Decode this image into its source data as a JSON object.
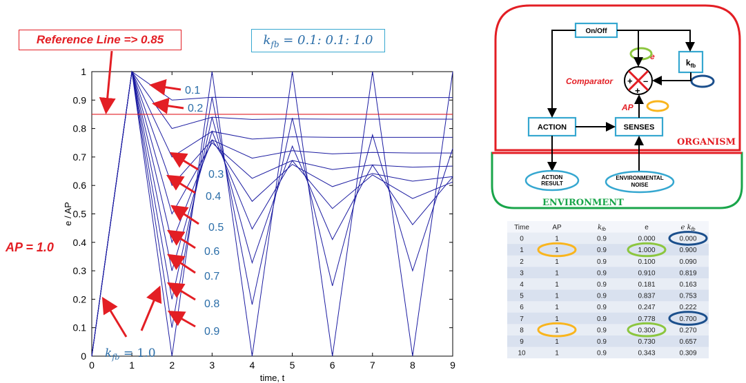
{
  "annotations": {
    "reference": "Reference Line => 0.85",
    "kfb_range": "k_fb = 0.1: 0.1: 1.0",
    "ap": "AP = 1.0",
    "kfb_bottom": "k_fb = 1.0"
  },
  "chart_data": {
    "type": "line",
    "xlabel": "time, t",
    "ylabel": "e / AP",
    "xlim": [
      0,
      9
    ],
    "ylim": [
      0,
      1
    ],
    "xticks": [
      0,
      1,
      2,
      3,
      4,
      5,
      6,
      7,
      8,
      9
    ],
    "yticks": [
      0,
      0.1,
      0.2,
      0.3,
      0.4,
      0.5,
      0.6,
      0.7,
      0.8,
      0.9,
      1
    ],
    "reference_line": 0.85,
    "x": [
      0,
      1,
      2,
      3,
      4,
      5,
      6,
      7,
      8,
      9
    ],
    "series": [
      {
        "name": "0.1",
        "values": [
          0,
          1,
          0.9,
          0.91,
          0.909,
          0.909,
          0.909,
          0.909,
          0.909,
          0.909
        ]
      },
      {
        "name": "0.2",
        "values": [
          0,
          1,
          0.8,
          0.84,
          0.832,
          0.834,
          0.833,
          0.833,
          0.833,
          0.833
        ]
      },
      {
        "name": "0.3",
        "values": [
          0,
          1,
          0.7,
          0.79,
          0.763,
          0.771,
          0.769,
          0.769,
          0.769,
          0.769
        ]
      },
      {
        "name": "0.4",
        "values": [
          0,
          1,
          0.6,
          0.76,
          0.696,
          0.722,
          0.711,
          0.716,
          0.714,
          0.714
        ]
      },
      {
        "name": "0.5",
        "values": [
          0,
          1,
          0.5,
          0.75,
          0.625,
          0.688,
          0.656,
          0.672,
          0.664,
          0.668
        ]
      },
      {
        "name": "0.6",
        "values": [
          0,
          1,
          0.4,
          0.76,
          0.544,
          0.674,
          0.596,
          0.642,
          0.615,
          0.631
        ]
      },
      {
        "name": "0.7",
        "values": [
          0,
          1,
          0.3,
          0.79,
          0.447,
          0.687,
          0.519,
          0.637,
          0.554,
          0.612
        ]
      },
      {
        "name": "0.8",
        "values": [
          0,
          1,
          0.2,
          0.84,
          0.328,
          0.738,
          0.41,
          0.672,
          0.462,
          0.63
        ]
      },
      {
        "name": "0.9",
        "values": [
          0,
          1,
          0.1,
          0.91,
          0.181,
          0.837,
          0.247,
          0.778,
          0.3,
          0.73
        ]
      },
      {
        "name": "1.0",
        "values": [
          0,
          1,
          0,
          1,
          0,
          1,
          0,
          1,
          0,
          1
        ]
      }
    ],
    "series_labels": [
      "0.1",
      "0.2",
      "0.3",
      "0.4",
      "0.5",
      "0.6",
      "0.7",
      "0.8",
      "0.9"
    ]
  },
  "diagram": {
    "on_off": "On/Off",
    "kfb": "k",
    "kfb_sub": "fb",
    "e_label": "e",
    "comparator": "Comparator",
    "ap_label": "AP",
    "plus_left": "+",
    "minus": "–",
    "plus_bottom": "+",
    "action": "ACTION",
    "senses": "SENSES",
    "organism": "ORGANISM",
    "action_result_1": "ACTION",
    "action_result_2": "RESULT",
    "env_noise_1": "ENVIRONMENTAL",
    "env_noise_2": "NOISE",
    "environment": "ENVIRONMENT",
    "colors": {
      "organism": "#e31e24",
      "environment": "#19a54a",
      "box": "#35a7d0",
      "oval_green": "#8cc63f",
      "oval_yellow": "#f9b51e",
      "oval_navy": "#1b4f8c"
    }
  },
  "table": {
    "headers": [
      "Time",
      "AP",
      "k_fb",
      "e",
      "e k_fb"
    ],
    "rows": [
      [
        "0",
        "1",
        "0.9",
        "0.000",
        "0.000"
      ],
      [
        "1",
        "1",
        "0.9",
        "1.000",
        "0.900"
      ],
      [
        "2",
        "1",
        "0.9",
        "0.100",
        "0.090"
      ],
      [
        "3",
        "1",
        "0.9",
        "0.910",
        "0.819"
      ],
      [
        "4",
        "1",
        "0.9",
        "0.181",
        "0.163"
      ],
      [
        "5",
        "1",
        "0.9",
        "0.837",
        "0.753"
      ],
      [
        "6",
        "1",
        "0.9",
        "0.247",
        "0.222"
      ],
      [
        "7",
        "1",
        "0.9",
        "0.778",
        "0.700"
      ],
      [
        "8",
        "1",
        "0.9",
        "0.300",
        "0.270"
      ],
      [
        "9",
        "1",
        "0.9",
        "0.730",
        "0.657"
      ],
      [
        "10",
        "1",
        "0.9",
        "0.343",
        "0.309"
      ]
    ]
  }
}
